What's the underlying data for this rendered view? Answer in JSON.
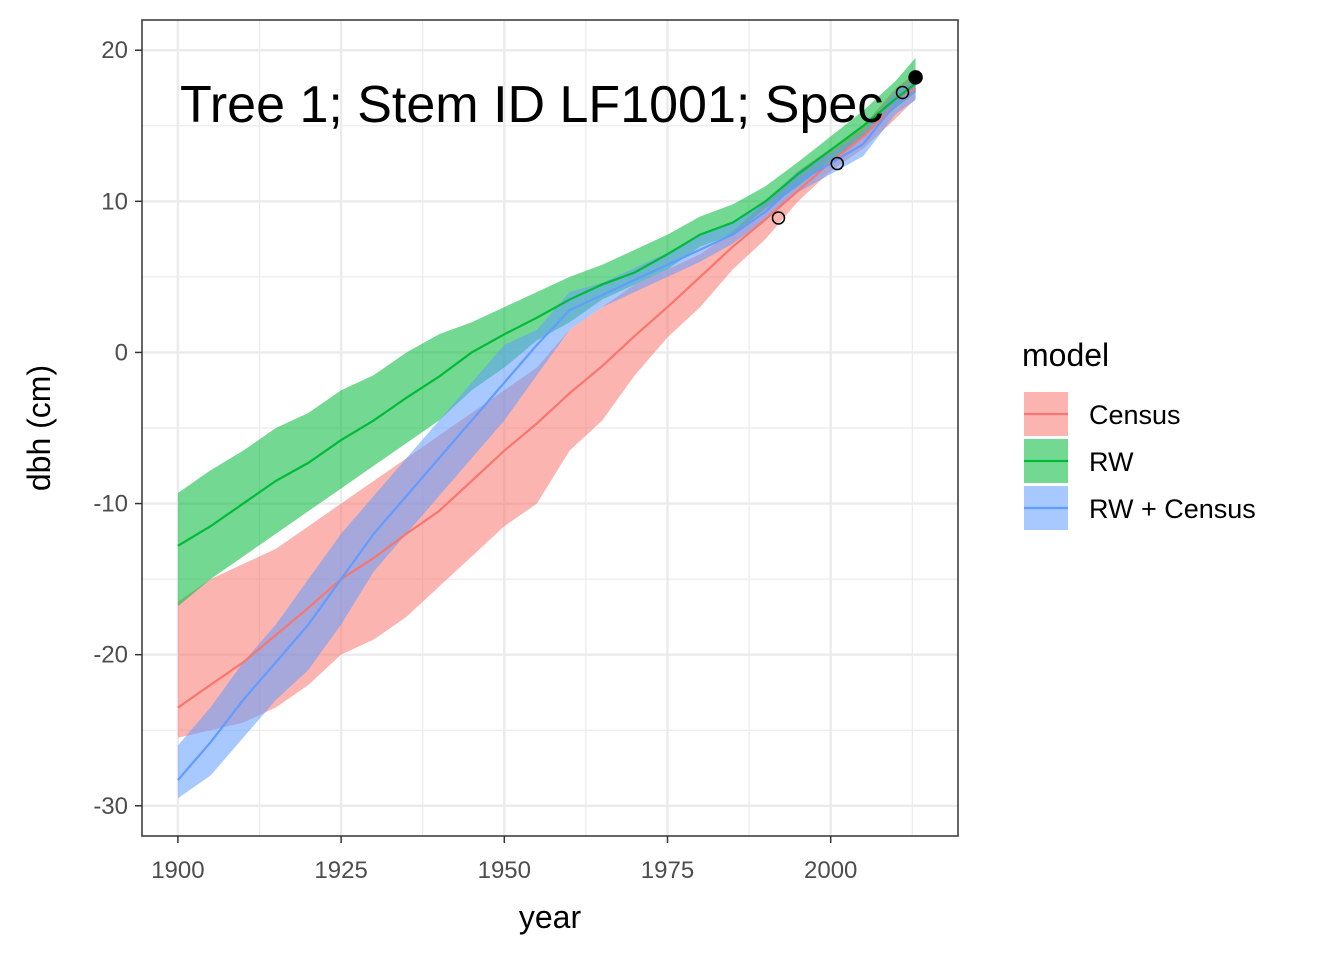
{
  "chart_data": {
    "type": "area",
    "title": "",
    "annotation": "Tree 1; Stem ID LF1001; Spec",
    "xlabel": "year",
    "ylabel": "dbh (cm)",
    "xlim": [
      1894.5,
      2019.5
    ],
    "ylim": [
      -32,
      22
    ],
    "x_ticks": [
      1900,
      1925,
      1950,
      1975,
      2000
    ],
    "y_ticks": [
      -30,
      -20,
      -10,
      0,
      10,
      20
    ],
    "x_tick_labels": [
      "1900",
      "1925",
      "1950",
      "1975",
      "2000"
    ],
    "y_tick_labels": [
      "-30",
      "-20",
      "-10",
      "0",
      "10",
      "20"
    ],
    "grid": true,
    "legend": {
      "title": "model",
      "position": "right",
      "items": [
        "Census",
        "RW",
        "RW + Census"
      ]
    },
    "series": [
      {
        "name": "Census",
        "color": "#F8766D",
        "x": [
          1900,
          1905,
          1910,
          1915,
          1920,
          1925,
          1930,
          1935,
          1940,
          1945,
          1950,
          1955,
          1960,
          1965,
          1970,
          1975,
          1980,
          1985,
          1990,
          1995,
          2000,
          2005,
          2010,
          2013
        ],
        "mean": [
          -23.5,
          -22.0,
          -20.5,
          -18.7,
          -16.9,
          -15.0,
          -13.6,
          -12.0,
          -10.5,
          -8.5,
          -6.5,
          -4.7,
          -2.7,
          -0.9,
          1.1,
          3.0,
          5.0,
          7.0,
          8.8,
          10.7,
          12.6,
          14.3,
          16.5,
          17.5
        ],
        "lower": [
          -25.5,
          -25.0,
          -24.5,
          -23.5,
          -22.0,
          -20.0,
          -19.0,
          -17.5,
          -15.5,
          -13.5,
          -11.5,
          -10.0,
          -6.5,
          -4.5,
          -1.5,
          1.0,
          3.0,
          5.5,
          7.5,
          10.0,
          12.0,
          13.5,
          15.5,
          16.8
        ],
        "upper": [
          -16.5,
          -15.0,
          -14.0,
          -13.0,
          -11.5,
          -10.0,
          -8.5,
          -7.0,
          -5.5,
          -4.0,
          -2.5,
          -1.0,
          1.5,
          3.0,
          4.5,
          5.5,
          6.5,
          8.0,
          10.0,
          12.0,
          13.5,
          15.0,
          17.5,
          18.5
        ]
      },
      {
        "name": "RW",
        "color": "#00BA38",
        "x": [
          1900,
          1905,
          1910,
          1915,
          1920,
          1925,
          1930,
          1935,
          1940,
          1945,
          1950,
          1955,
          1960,
          1965,
          1970,
          1975,
          1980,
          1985,
          1990,
          1995,
          2000,
          2005,
          2010,
          2013
        ],
        "mean": [
          -12.8,
          -11.5,
          -10.0,
          -8.5,
          -7.3,
          -5.8,
          -4.5,
          -3.0,
          -1.6,
          0.0,
          1.2,
          2.3,
          3.5,
          4.5,
          5.3,
          6.5,
          7.8,
          8.6,
          10.0,
          11.8,
          13.4,
          15.0,
          16.8,
          17.8
        ],
        "lower": [
          -16.8,
          -15.0,
          -13.5,
          -12.0,
          -10.5,
          -9.0,
          -7.5,
          -6.0,
          -4.5,
          -2.5,
          -1.0,
          0.8,
          2.0,
          3.5,
          4.5,
          5.5,
          7.0,
          7.8,
          9.5,
          11.0,
          12.7,
          14.3,
          16.2,
          17.2
        ],
        "upper": [
          -9.3,
          -7.8,
          -6.5,
          -5.0,
          -4.0,
          -2.5,
          -1.5,
          0.0,
          1.2,
          2.0,
          3.0,
          4.0,
          5.0,
          5.8,
          6.8,
          7.8,
          9.0,
          9.8,
          11.0,
          12.6,
          14.3,
          16.0,
          18.0,
          19.5
        ]
      },
      {
        "name": "RW + Census",
        "color": "#619CFF",
        "x": [
          1900,
          1905,
          1910,
          1915,
          1920,
          1925,
          1930,
          1935,
          1940,
          1945,
          1950,
          1955,
          1960,
          1965,
          1970,
          1975,
          1980,
          1985,
          1990,
          1995,
          2000,
          2005,
          2010,
          2013
        ],
        "mean": [
          -28.3,
          -25.8,
          -23.0,
          -20.5,
          -18.0,
          -15.0,
          -12.0,
          -9.5,
          -7.0,
          -4.5,
          -2.0,
          0.5,
          2.8,
          3.8,
          4.8,
          5.8,
          6.8,
          7.8,
          9.3,
          11.3,
          12.5,
          13.8,
          16.5,
          17.3
        ],
        "lower": [
          -29.5,
          -28.0,
          -25.5,
          -23.0,
          -21.0,
          -18.0,
          -14.5,
          -12.0,
          -9.5,
          -7.0,
          -4.5,
          -1.5,
          1.5,
          3.0,
          4.0,
          5.0,
          6.0,
          7.2,
          8.8,
          10.6,
          11.8,
          13.0,
          15.8,
          16.7
        ],
        "upper": [
          -26.0,
          -23.5,
          -20.5,
          -18.0,
          -15.0,
          -12.0,
          -9.5,
          -7.0,
          -4.5,
          -2.0,
          0.5,
          1.5,
          4.0,
          4.6,
          5.6,
          6.6,
          7.8,
          8.6,
          10.0,
          12.0,
          13.2,
          14.6,
          17.3,
          18.0
        ]
      }
    ],
    "points": [
      {
        "x": 1992,
        "y": 8.9,
        "filled": false
      },
      {
        "x": 2001,
        "y": 12.5,
        "filled": false
      },
      {
        "x": 2011,
        "y": 17.2,
        "filled": false
      },
      {
        "x": 2013,
        "y": 18.2,
        "filled": true
      }
    ]
  }
}
